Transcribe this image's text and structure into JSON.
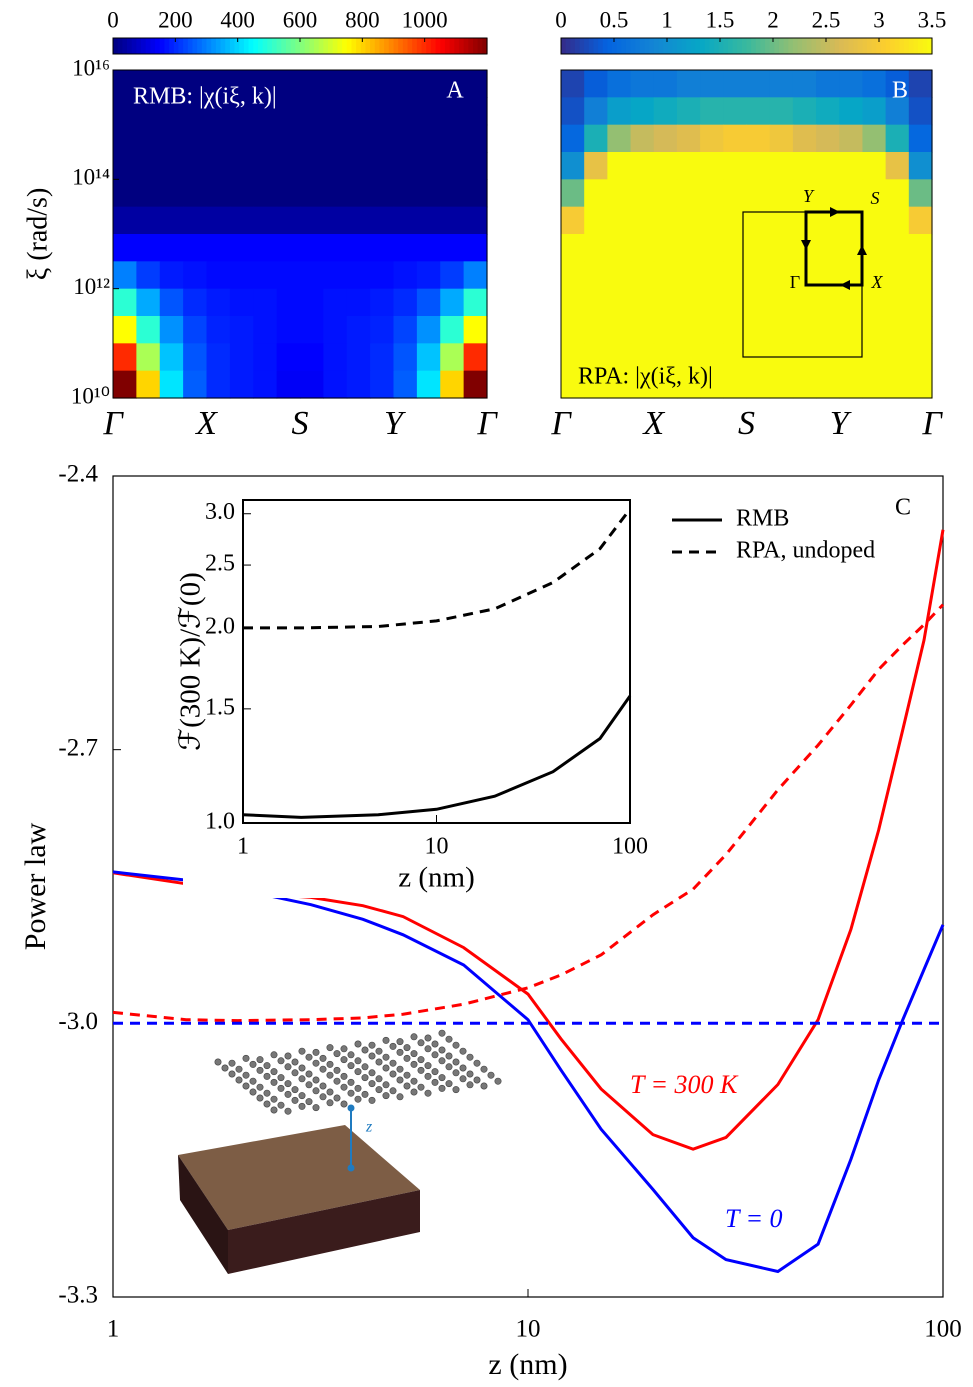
{
  "chart_data": [
    {
      "type": "heatmap",
      "panel_label": "A",
      "annotation": "RMB: |χ(iξ, k)|",
      "ylabel": "ξ (rad/s)",
      "categories": [
        "Γ",
        "X",
        "S",
        "Y",
        "Γ"
      ],
      "ylim": [
        10000000000,
        10000000000000000
      ],
      "log_y": true,
      "yticks": [
        {
          "value": 10000000000,
          "label": "10¹⁰"
        },
        {
          "value": 1000000000000,
          "label": "10¹²"
        },
        {
          "value": 100000000000000,
          "label": "10¹⁴"
        },
        {
          "value": 10000000000000000,
          "label": "10¹⁶"
        }
      ],
      "colormap": "jet",
      "clim": [
        0,
        1200
      ],
      "cticks": [
        0,
        200,
        400,
        600,
        800,
        1000
      ],
      "z": [
        [
          0,
          0,
          0,
          0,
          0,
          0,
          0,
          0,
          0,
          0,
          0,
          0,
          0,
          0,
          0,
          0
        ],
        [
          0,
          0,
          0,
          0,
          0,
          0,
          0,
          0,
          0,
          0,
          0,
          0,
          0,
          0,
          0,
          0
        ],
        [
          0,
          0,
          0,
          0,
          0,
          0,
          0,
          0,
          0,
          0,
          0,
          0,
          0,
          0,
          0,
          0
        ],
        [
          0,
          0,
          0,
          0,
          0,
          0,
          0,
          0,
          0,
          0,
          0,
          0,
          0,
          0,
          0,
          0
        ],
        [
          0,
          0,
          0,
          0,
          0,
          0,
          0,
          0,
          0,
          0,
          0,
          0,
          0,
          0,
          0,
          0
        ],
        [
          40,
          40,
          40,
          40,
          40,
          40,
          40,
          40,
          40,
          40,
          40,
          40,
          40,
          40,
          40,
          40
        ],
        [
          150,
          150,
          150,
          150,
          150,
          150,
          150,
          150,
          150,
          150,
          150,
          150,
          150,
          150,
          150,
          150
        ],
        [
          300,
          220,
          180,
          170,
          160,
          160,
          160,
          160,
          160,
          160,
          160,
          160,
          170,
          180,
          220,
          300
        ],
        [
          500,
          350,
          250,
          200,
          180,
          170,
          170,
          160,
          160,
          170,
          170,
          180,
          200,
          250,
          350,
          500
        ],
        [
          750,
          500,
          320,
          230,
          190,
          180,
          170,
          160,
          160,
          170,
          180,
          190,
          230,
          320,
          500,
          750
        ],
        [
          1000,
          650,
          380,
          250,
          200,
          180,
          170,
          150,
          150,
          170,
          180,
          200,
          250,
          380,
          650,
          1000
        ],
        [
          1200,
          800,
          420,
          260,
          200,
          180,
          170,
          140,
          140,
          170,
          180,
          200,
          260,
          420,
          800,
          1200
        ]
      ]
    },
    {
      "type": "heatmap",
      "panel_label": "B",
      "annotation": "RPA: |χ(iξ, k)|",
      "categories": [
        "Γ",
        "X",
        "S",
        "Y",
        "Γ"
      ],
      "ylim": [
        10000000000,
        10000000000000000
      ],
      "log_y": true,
      "colormap": "parula",
      "clim": [
        0,
        3.5
      ],
      "cticks": [
        0,
        0.5,
        1,
        1.5,
        2,
        2.5,
        3,
        3.5
      ],
      "inset_labels": [
        "Y",
        "S",
        "Γ",
        "X"
      ],
      "z": [
        [
          0.2,
          0.4,
          0.6,
          0.7,
          0.7,
          0.8,
          0.8,
          0.8,
          0.8,
          0.8,
          0.8,
          0.7,
          0.7,
          0.6,
          0.4,
          0.2
        ],
        [
          0.3,
          0.8,
          1.2,
          1.3,
          1.4,
          1.5,
          1.6,
          1.6,
          1.6,
          1.6,
          1.5,
          1.4,
          1.3,
          1.2,
          0.8,
          0.3
        ],
        [
          0.5,
          1.5,
          2.2,
          2.5,
          2.6,
          2.7,
          2.9,
          3.0,
          3.0,
          2.9,
          2.7,
          2.6,
          2.5,
          2.2,
          1.5,
          0.5
        ],
        [
          1.0,
          2.8,
          3.5,
          3.5,
          3.5,
          3.5,
          3.5,
          3.5,
          3.5,
          3.5,
          3.5,
          3.5,
          3.5,
          3.5,
          2.8,
          1.0
        ],
        [
          2.0,
          3.5,
          3.5,
          3.5,
          3.5,
          3.5,
          3.5,
          3.5,
          3.5,
          3.5,
          3.5,
          3.5,
          3.5,
          3.5,
          3.5,
          2.0
        ],
        [
          3.0,
          3.5,
          3.5,
          3.5,
          3.5,
          3.5,
          3.5,
          3.5,
          3.5,
          3.5,
          3.5,
          3.5,
          3.5,
          3.5,
          3.5,
          3.0
        ],
        [
          3.5,
          3.5,
          3.5,
          3.5,
          3.5,
          3.5,
          3.5,
          3.5,
          3.5,
          3.5,
          3.5,
          3.5,
          3.5,
          3.5,
          3.5,
          3.5
        ],
        [
          3.5,
          3.5,
          3.5,
          3.5,
          3.5,
          3.5,
          3.5,
          3.5,
          3.5,
          3.5,
          3.5,
          3.5,
          3.5,
          3.5,
          3.5,
          3.5
        ],
        [
          3.5,
          3.5,
          3.5,
          3.5,
          3.5,
          3.5,
          3.5,
          3.5,
          3.5,
          3.5,
          3.5,
          3.5,
          3.5,
          3.5,
          3.5,
          3.5
        ],
        [
          3.5,
          3.5,
          3.5,
          3.5,
          3.5,
          3.5,
          3.5,
          3.5,
          3.5,
          3.5,
          3.5,
          3.5,
          3.5,
          3.5,
          3.5,
          3.5
        ],
        [
          3.5,
          3.5,
          3.5,
          3.5,
          3.5,
          3.5,
          3.5,
          3.5,
          3.5,
          3.5,
          3.5,
          3.5,
          3.5,
          3.5,
          3.5,
          3.5
        ],
        [
          3.5,
          3.5,
          3.5,
          3.5,
          3.5,
          3.5,
          3.5,
          3.5,
          3.5,
          3.5,
          3.5,
          3.5,
          3.5,
          3.5,
          3.5,
          3.5
        ]
      ]
    },
    {
      "type": "line",
      "panel_label": "C",
      "xlabel": "z (nm)",
      "ylabel": "Power law",
      "log_x": true,
      "xlim": [
        1,
        100
      ],
      "xticks": [
        1,
        10,
        100
      ],
      "ylim": [
        -3.3,
        -2.4
      ],
      "yticks": [
        -3.3,
        {
          "value": -3,
          "label": "-3.0"
        },
        -2.7,
        -2.4
      ],
      "legend": [
        {
          "label": "RMB",
          "dash": "solid"
        },
        {
          "label": "RPA, undoped",
          "dash": "dashed"
        }
      ],
      "annotations": [
        {
          "text": "T = 300 K",
          "color": "#ff0000"
        },
        {
          "text": "T = 0",
          "color": "#0000ff"
        }
      ],
      "illustration_label": "z",
      "x": [
        1,
        1.5,
        2,
        3,
        4,
        5,
        7,
        10,
        12,
        15,
        20,
        25,
        30,
        40,
        50,
        60,
        70,
        80,
        90,
        100
      ],
      "series": [
        {
          "color": "#ff0000",
          "dash": "solid",
          "values": [
            -2.835,
            -2.847,
            -2.856,
            -2.862,
            -2.871,
            -2.883,
            -2.917,
            -2.968,
            -3.017,
            -3.072,
            -3.122,
            -3.138,
            -3.125,
            -3.067,
            -2.996,
            -2.897,
            -2.788,
            -2.678,
            -2.58,
            -2.459
          ]
        },
        {
          "color": "#ff0000",
          "dash": "dashed",
          "values": [
            -2.988,
            -2.996,
            -2.997,
            -2.996,
            -2.994,
            -2.99,
            -2.979,
            -2.961,
            -2.947,
            -2.925,
            -2.881,
            -2.853,
            -2.815,
            -2.744,
            -2.695,
            -2.651,
            -2.612,
            -2.585,
            -2.563,
            -2.541
          ]
        },
        {
          "color": "#0000ff",
          "dash": "solid",
          "values": [
            -2.834,
            -2.843,
            -2.853,
            -2.87,
            -2.886,
            -2.903,
            -2.936,
            -2.996,
            -3.051,
            -3.116,
            -3.182,
            -3.235,
            -3.259,
            -3.272,
            -3.242,
            -3.149,
            -3.062,
            -2.996,
            -2.941,
            -2.892
          ]
        },
        {
          "color": "#0000ff",
          "dash": "dashed",
          "values": [
            -3,
            -3,
            -3,
            -3,
            -3,
            -3,
            -3,
            -3,
            -3,
            -3,
            -3,
            -3,
            -3,
            -3,
            -3,
            -3,
            -3,
            -3,
            -3,
            -3
          ]
        }
      ]
    },
    {
      "type": "line",
      "xlabel": "z (nm)",
      "ylabel": "ℱ(300 K)/ℱ(0)",
      "log_x": true,
      "log_y": true,
      "xlim": [
        1,
        100
      ],
      "xticks": [
        1,
        10,
        100
      ],
      "ylim": [
        1,
        3.15
      ],
      "yticks": [
        {
          "value": 1,
          "label": "1.0"
        },
        1.5,
        {
          "value": 2,
          "label": "2.0"
        },
        2.5,
        {
          "value": 3,
          "label": "3.0"
        }
      ],
      "x": [
        1,
        2,
        5,
        10,
        20,
        40,
        70,
        100
      ],
      "series": [
        {
          "color": "#000000",
          "dash": "dashed",
          "values": [
            2.0,
            2.0,
            2.01,
            2.05,
            2.14,
            2.35,
            2.65,
            3.05
          ]
        },
        {
          "color": "#000000",
          "dash": "solid",
          "values": [
            1.03,
            1.02,
            1.03,
            1.05,
            1.1,
            1.2,
            1.35,
            1.57
          ]
        }
      ]
    }
  ]
}
